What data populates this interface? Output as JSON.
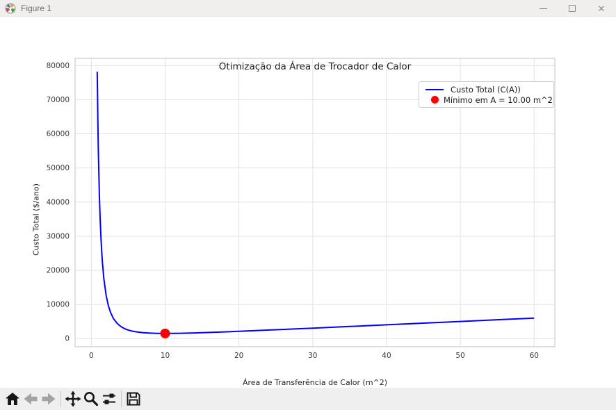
{
  "window": {
    "title": "Figure 1",
    "controls": {
      "minimize": "minimize",
      "maximize": "maximize",
      "close": "close"
    }
  },
  "chart_data": {
    "type": "line",
    "title": "Otimização da Área de Trocador de Calor",
    "xlabel": "Área de Transferência de Calor (m^2)",
    "ylabel": "Custo Total ($/ano)",
    "x_ticks": [
      0,
      10,
      20,
      30,
      40,
      50,
      60
    ],
    "y_ticks": [
      0,
      10000,
      20000,
      30000,
      40000,
      50000,
      60000,
      70000,
      80000
    ],
    "xlim": [
      -2.2,
      62.8
    ],
    "ylim": [
      -2400,
      82100
    ],
    "grid": true,
    "legend_position": "upper right",
    "colors": {
      "curve": "#0000ff",
      "marker": "#ff0000",
      "grid": "#e2e2e2",
      "spine": "#cccccc",
      "tick_text": "#3a3a3a"
    },
    "series": [
      {
        "name": "Custo Total (C(A))",
        "color": "#0000ff",
        "x": [
          0.8,
          0.85,
          0.9,
          0.95,
          1.0,
          1.1,
          1.2,
          1.3,
          1.4,
          1.5,
          1.7,
          2.0,
          2.3,
          2.6,
          3.0,
          3.5,
          4.0,
          4.5,
          5.0,
          5.5,
          6.0,
          7.0,
          8.0,
          9.0,
          10.0,
          11.0,
          12.0,
          14.0,
          16.0,
          18.0,
          20.0,
          25.0,
          30.0,
          35.0,
          40.0,
          45.0,
          50.0,
          55.0,
          60.0
        ],
        "y": [
          78205,
          69289,
          61818,
          55497,
          50100,
          41432,
          34842,
          29716,
          25650,
          22372,
          17471,
          12700,
          9682,
          7656,
          5856,
          4432,
          3525,
          2919,
          2500,
          2203,
          1989,
          1720,
          1581,
          1517,
          1500,
          1513,
          1547,
          1655,
          1795,
          1954,
          2125,
          2580,
          3056,
          3541,
          4031,
          4525,
          5020,
          5517,
          6014
        ]
      }
    ],
    "minimum_marker": {
      "label": "Mínimo em A = 10.00 m^2",
      "x": 10,
      "y": 1500,
      "color": "#ff0000"
    }
  },
  "toolbar": {
    "icons": [
      "home-icon",
      "back-icon",
      "forward-icon",
      "pan-icon",
      "zoom-icon",
      "subplots-icon",
      "save-icon"
    ]
  }
}
